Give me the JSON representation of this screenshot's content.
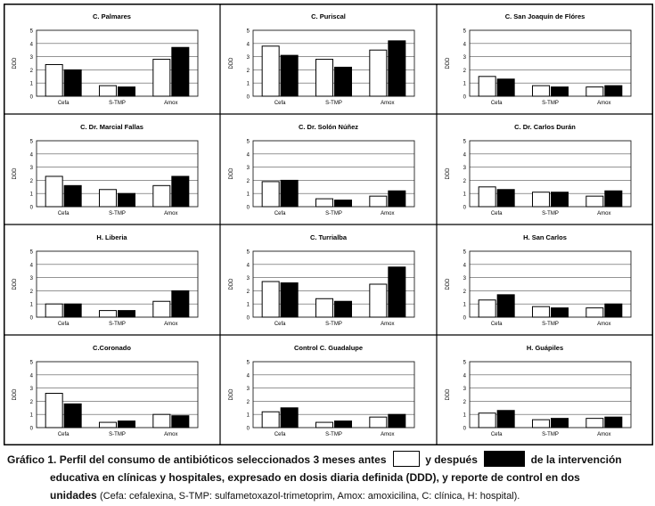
{
  "figure": {
    "caption": {
      "label": "Gráfico 1.",
      "part1": "Perfil del consumo de antibióticos seleccionados 3 meses antes",
      "part2": "y después",
      "part3": "de la intervención",
      "line2": "educativa en clínicas y hospitales, expresado en dosis diaria definida (DDD), y reporte de control en dos",
      "line3_bold": "unidades",
      "line3_normal": "(Cefa: cefalexina, S-TMP: sulfametoxazol-trimetoprim, Amox: amoxicilina, C: clínica, H: hospital).",
      "legend": [
        {
          "meaning": "antes",
          "color": "#ffffff"
        },
        {
          "meaning": "después",
          "color": "#000000"
        }
      ]
    }
  },
  "chart_data": [
    {
      "type": "bar",
      "title": "C. Palmares",
      "ylabel": "DDD",
      "ylim": [
        0,
        5
      ],
      "yticks": [
        "0",
        "1",
        "2",
        "3",
        "4",
        "5"
      ],
      "categories": [
        "Cefa",
        "S-TMP",
        "Amox"
      ],
      "series": [
        {
          "values": [
            2.4,
            0.8,
            2.8
          ]
        },
        {
          "values": [
            2.0,
            0.7,
            3.7
          ]
        }
      ]
    },
    {
      "type": "bar",
      "title": "C. Puriscal",
      "ylabel": "DDD",
      "ylim": [
        0,
        5
      ],
      "yticks": [
        "0",
        "1",
        "2",
        "3",
        "4",
        "5"
      ],
      "categories": [
        "Cefa",
        "S-TMP",
        "Amox"
      ],
      "series": [
        {
          "values": [
            3.8,
            2.8,
            3.5
          ]
        },
        {
          "values": [
            3.1,
            2.2,
            4.2
          ]
        }
      ]
    },
    {
      "type": "bar",
      "title": "C. San Joaquín de Flóres",
      "ylabel": "DDD",
      "ylim": [
        0,
        5
      ],
      "yticks": [
        "0",
        "1",
        "2",
        "3",
        "4",
        "5"
      ],
      "categories": [
        "Cefa",
        "S-TMP",
        "Amox"
      ],
      "series": [
        {
          "values": [
            1.5,
            0.8,
            0.7
          ]
        },
        {
          "values": [
            1.3,
            0.7,
            0.8
          ]
        }
      ]
    },
    {
      "type": "bar",
      "title": "C. Dr. Marcial Fallas",
      "ylabel": "DDD",
      "ylim": [
        0,
        5
      ],
      "yticks": [
        "0",
        "1",
        "2",
        "3",
        "4",
        "5"
      ],
      "categories": [
        "Cefa",
        "S-TMP",
        "Amox"
      ],
      "series": [
        {
          "values": [
            2.3,
            1.3,
            1.6
          ]
        },
        {
          "values": [
            1.6,
            1.0,
            2.3
          ]
        }
      ]
    },
    {
      "type": "bar",
      "title": "C. Dr. Solón Núñez",
      "ylabel": "DDD",
      "ylim": [
        0,
        5
      ],
      "yticks": [
        "0",
        "1",
        "2",
        "3",
        "4",
        "5"
      ],
      "categories": [
        "Cefa",
        "S-TMP",
        "Amox"
      ],
      "series": [
        {
          "values": [
            1.9,
            0.6,
            0.8
          ]
        },
        {
          "values": [
            2.0,
            0.5,
            1.2
          ]
        }
      ]
    },
    {
      "type": "bar",
      "title": "C. Dr. Carlos Durán",
      "ylabel": "DDD",
      "ylim": [
        0,
        5
      ],
      "yticks": [
        "0",
        "1",
        "2",
        "3",
        "4",
        "5"
      ],
      "categories": [
        "Cefa",
        "S-TMP",
        "Amox"
      ],
      "series": [
        {
          "values": [
            1.5,
            1.1,
            0.8
          ]
        },
        {
          "values": [
            1.3,
            1.1,
            1.2
          ]
        }
      ]
    },
    {
      "type": "bar",
      "title": "H. Liberia",
      "ylabel": "DDD",
      "ylim": [
        0,
        5
      ],
      "yticks": [
        "0",
        "1",
        "2",
        "3",
        "4",
        "5"
      ],
      "categories": [
        "Cefa",
        "S-TMP",
        "Amox"
      ],
      "series": [
        {
          "values": [
            1.0,
            0.5,
            1.2
          ]
        },
        {
          "values": [
            1.0,
            0.5,
            2.0
          ]
        }
      ]
    },
    {
      "type": "bar",
      "title": "C. Turrialba",
      "ylabel": "DDD",
      "ylim": [
        0,
        5
      ],
      "yticks": [
        "0",
        "1",
        "2",
        "3",
        "4",
        "5"
      ],
      "categories": [
        "Cefa",
        "S-TMP",
        "Amox"
      ],
      "series": [
        {
          "values": [
            2.7,
            1.4,
            2.5
          ]
        },
        {
          "values": [
            2.6,
            1.2,
            3.8
          ]
        }
      ]
    },
    {
      "type": "bar",
      "title": "H. San Carlos",
      "ylabel": "DDD",
      "ylim": [
        0,
        5
      ],
      "yticks": [
        "0",
        "1",
        "2",
        "3",
        "4",
        "5"
      ],
      "categories": [
        "Cefa",
        "S-TMP",
        "Amox"
      ],
      "series": [
        {
          "values": [
            1.3,
            0.8,
            0.7
          ]
        },
        {
          "values": [
            1.7,
            0.7,
            1.0
          ]
        }
      ]
    },
    {
      "type": "bar",
      "title": "C.Coronado",
      "ylabel": "DDD",
      "ylim": [
        0,
        5
      ],
      "yticks": [
        "0",
        "1",
        "2",
        "3",
        "4",
        "5"
      ],
      "categories": [
        "Cefa",
        "S-TMP",
        "Amox"
      ],
      "series": [
        {
          "values": [
            2.6,
            0.4,
            1.0
          ]
        },
        {
          "values": [
            1.8,
            0.5,
            0.9
          ]
        }
      ]
    },
    {
      "type": "bar",
      "title": "Control C. Guadalupe",
      "ylabel": "DDD",
      "ylim": [
        0,
        5
      ],
      "yticks": [
        "0",
        "1",
        "2",
        "3",
        "4",
        "5"
      ],
      "categories": [
        "Cefa",
        "S-TMP",
        "Amox"
      ],
      "series": [
        {
          "values": [
            1.2,
            0.4,
            0.8
          ]
        },
        {
          "values": [
            1.5,
            0.5,
            1.0
          ]
        }
      ]
    },
    {
      "type": "bar",
      "title": "H. Guápiles",
      "ylabel": "DDD",
      "ylim": [
        0,
        5
      ],
      "yticks": [
        "0",
        "1",
        "2",
        "3",
        "4",
        "5"
      ],
      "categories": [
        "Cefa",
        "S-TMP",
        "Amox"
      ],
      "series": [
        {
          "values": [
            1.1,
            0.6,
            0.7
          ]
        },
        {
          "values": [
            1.3,
            0.7,
            0.8
          ]
        }
      ]
    }
  ]
}
